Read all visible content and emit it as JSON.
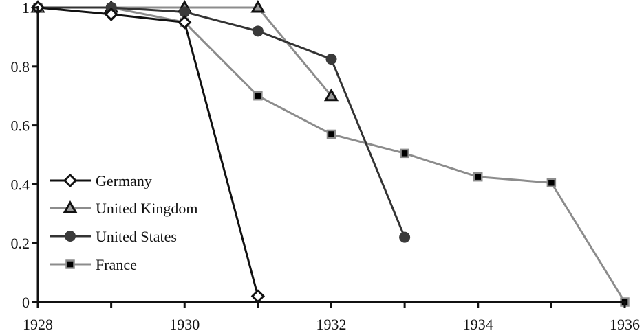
{
  "chart_data": {
    "type": "line",
    "title": "",
    "xlabel": "",
    "ylabel": "",
    "x": [
      1928,
      1929,
      1930,
      1931,
      1932,
      1933,
      1934,
      1935,
      1936
    ],
    "xlim": [
      1928,
      1936
    ],
    "ylim": [
      0,
      1
    ],
    "x_ticks": [
      1928,
      1929,
      1930,
      1931,
      1932,
      1933,
      1934,
      1935,
      1936
    ],
    "x_tick_labels": [
      "1928",
      "",
      "1930",
      "",
      "1932",
      "",
      "1934",
      "",
      "1936"
    ],
    "y_ticks": [
      0,
      0.2,
      0.4,
      0.6,
      0.8,
      1
    ],
    "y_tick_labels": [
      "0",
      "0.2",
      "0.4",
      "0.6",
      "0.8",
      "1"
    ],
    "grid": false,
    "legend_position": "lower left (inside)",
    "series": [
      {
        "name": "Germany",
        "marker": "diamond-open",
        "color": "#111111",
        "x": [
          1928,
          1929,
          1930,
          1931
        ],
        "values": [
          1.0,
          0.977,
          0.95,
          0.02
        ]
      },
      {
        "name": "United Kingdom",
        "marker": "triangle",
        "color": "#8c8c8c",
        "x": [
          1928,
          1929,
          1930,
          1931,
          1932
        ],
        "values": [
          1.0,
          1.0,
          1.0,
          1.0,
          0.7
        ]
      },
      {
        "name": "United States",
        "marker": "circle",
        "color": "#333333",
        "x": [
          1928,
          1929,
          1930,
          1931,
          1932,
          1933
        ],
        "values": [
          1.0,
          1.0,
          0.985,
          0.92,
          0.825,
          0.22
        ]
      },
      {
        "name": "France",
        "marker": "square",
        "color": "#8c8c8c",
        "x": [
          1928,
          1929,
          1930,
          1931,
          1932,
          1933,
          1934,
          1935,
          1936
        ],
        "values": [
          1.0,
          1.0,
          0.95,
          0.7,
          0.57,
          0.505,
          0.425,
          0.405,
          0.0
        ]
      }
    ]
  }
}
